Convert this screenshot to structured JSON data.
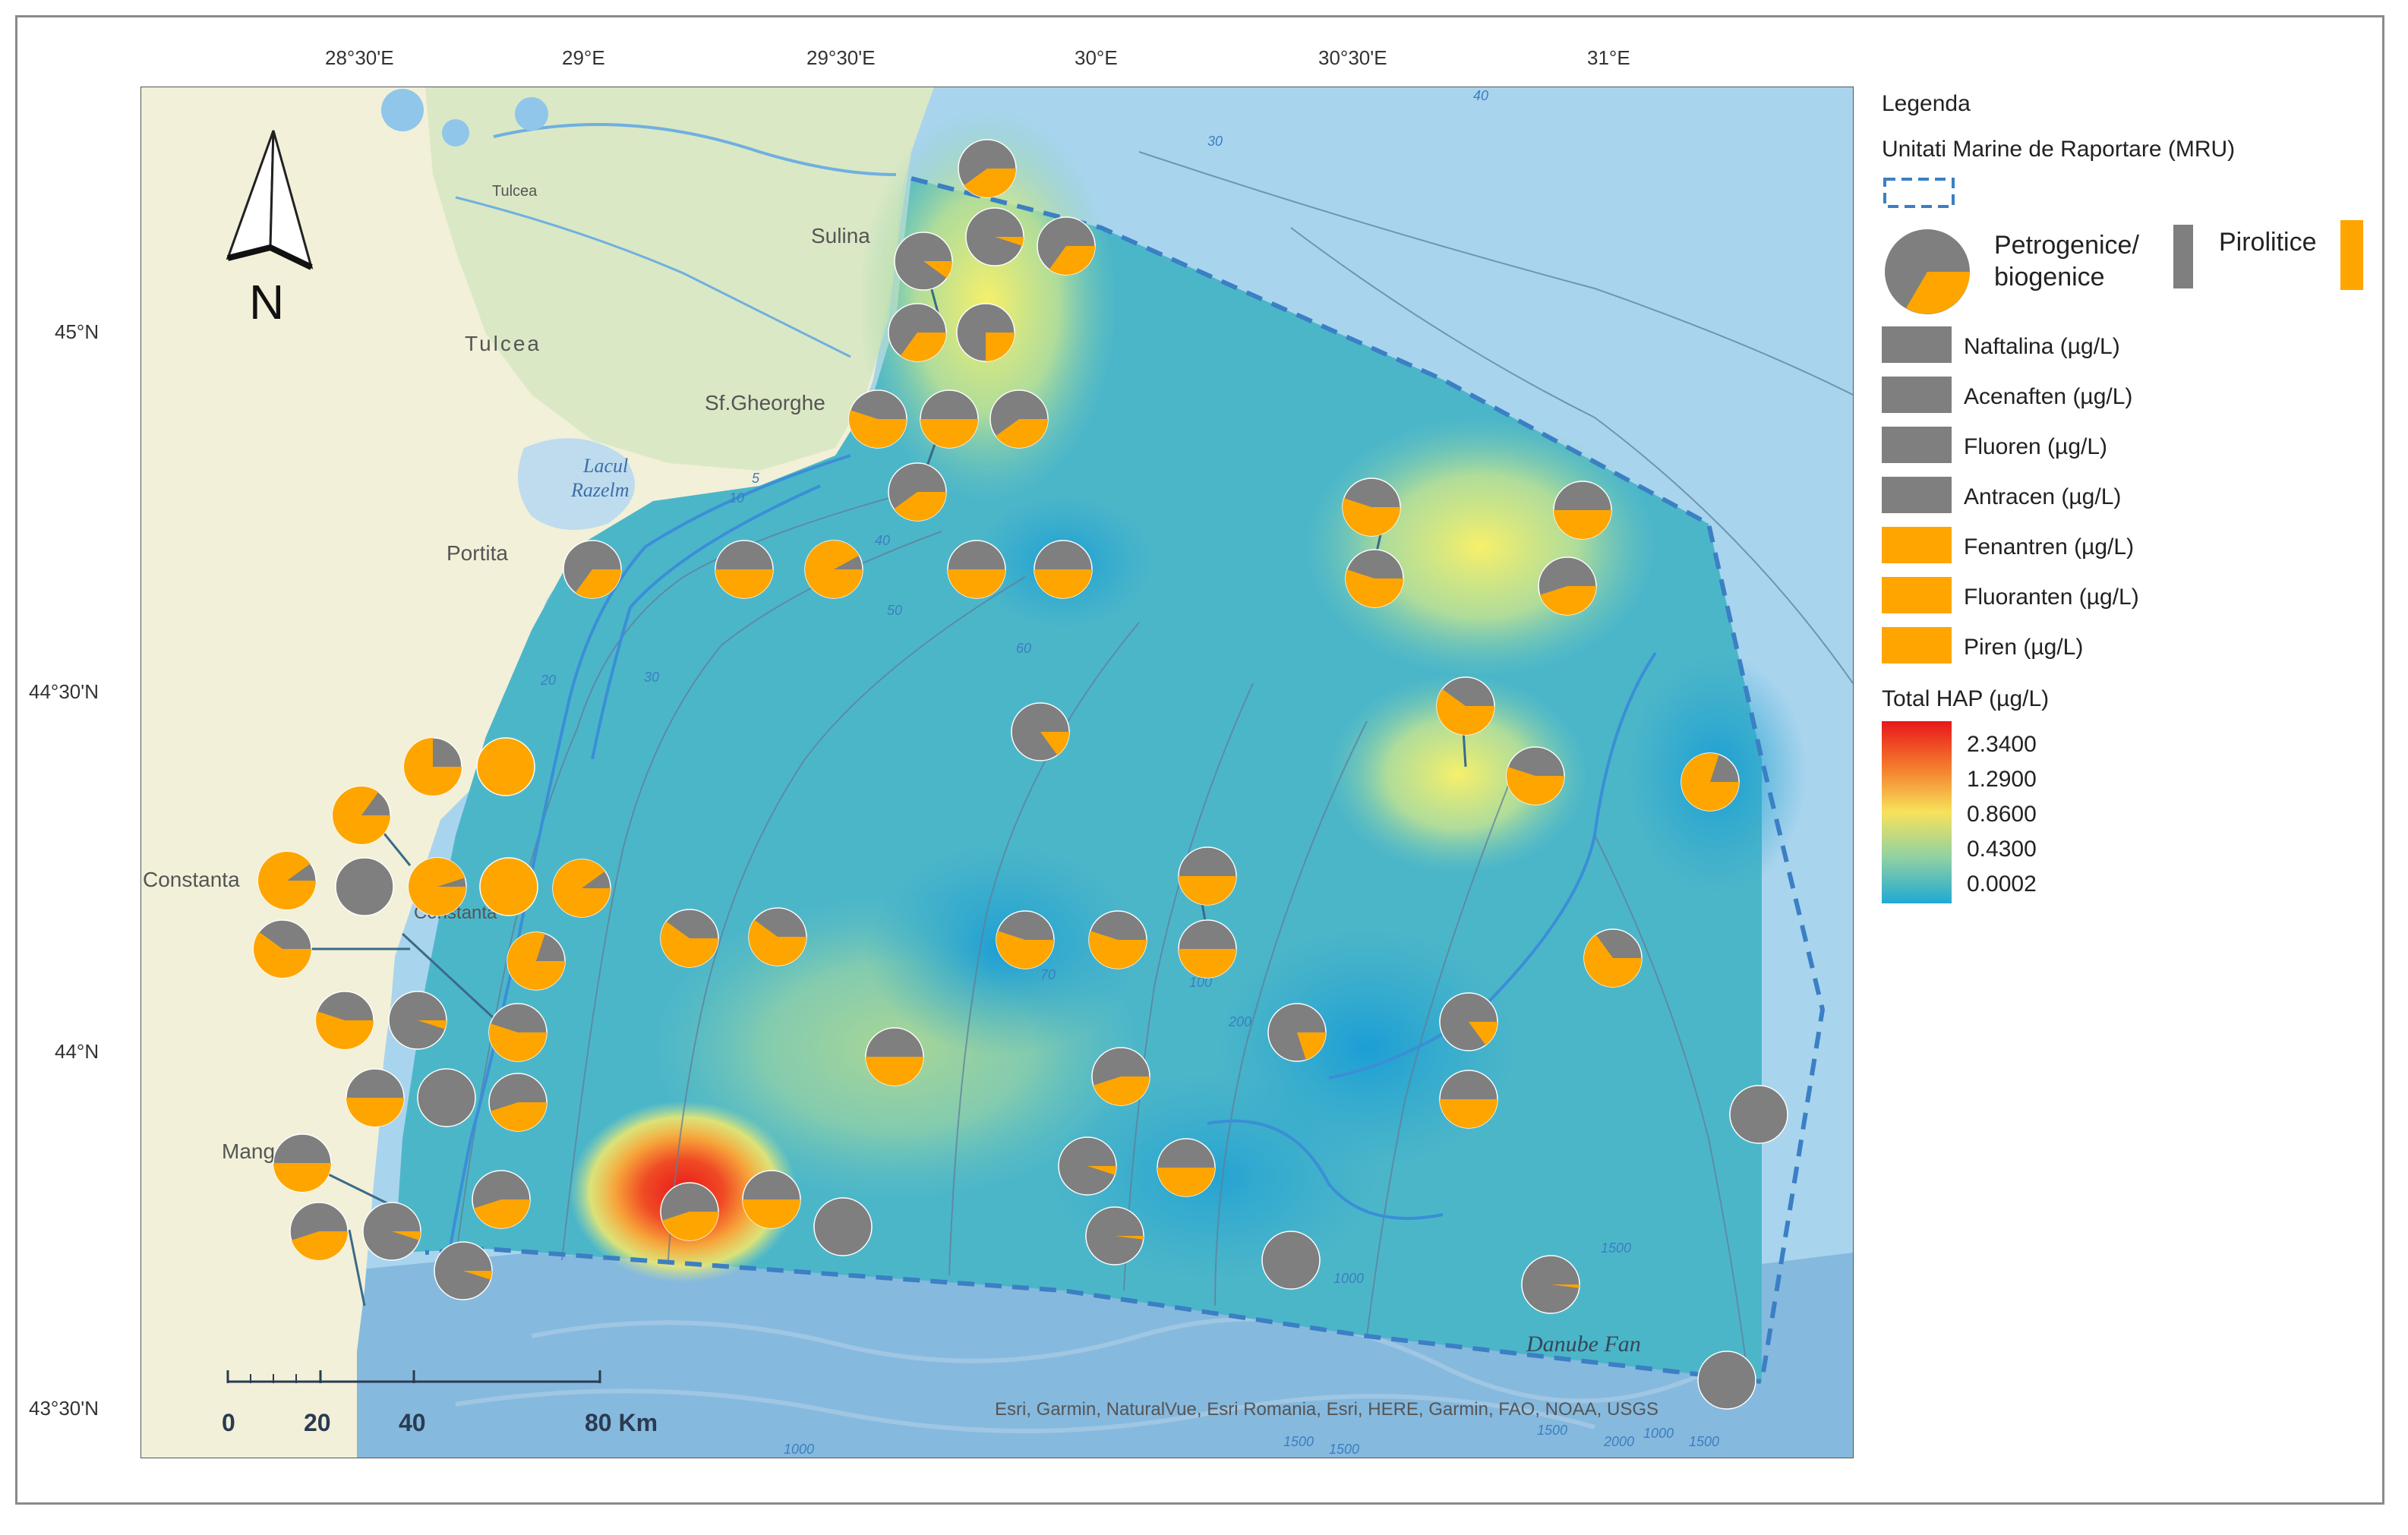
{
  "map": {
    "lon_labels": [
      "28°30'E",
      "29°E",
      "29°30'E",
      "30°E",
      "30°30'E",
      "31°E"
    ],
    "lat_labels": [
      "45°N",
      "44°30'N",
      "44°N",
      "43°30'N"
    ],
    "places": {
      "tulcea_small": "Tulcea",
      "tulcea": "Tulcea",
      "sulina": "Sulina",
      "sf_gheorghe": "Sf.Gheorghe",
      "lacul": "Lacul",
      "razelm": "Razelm",
      "portita": "Portita",
      "constanta_left": "Constanta",
      "constanta": "Constanta",
      "mangalia": "Mangalia",
      "danube_fan": "Danube Fan"
    },
    "depth_labels": [
      "10",
      "5",
      "20",
      "30",
      "40",
      "50",
      "60",
      "70",
      "80",
      "100",
      "200",
      "1000",
      "1500",
      "1500",
      "1000",
      "1500",
      "1500",
      "2000",
      "40",
      "30",
      "1500",
      "1000"
    ],
    "attribution": "Esri, Garmin, NaturalVue, Esri Romania, Esri, HERE, Garmin, FAO, NOAA, USGS",
    "north_label": "N",
    "scale_labels": [
      "0",
      "20",
      "40",
      "80 Km"
    ],
    "colors": {
      "land": "#f2f0d8",
      "sea": "#a9d4ee",
      "deep_sea": "#86b9de",
      "petro": "#7f7f7f",
      "pyro": "#ffa500",
      "mru_border": "#3b7fc4"
    }
  },
  "legend": {
    "title": "Legenda",
    "mru_label": "Unitati Marine de Raportare (MRU)",
    "petro_label_1": "Petrogenice/",
    "petro_label_2": "biogenice",
    "pyro_label": "Pirolitice",
    "compounds": [
      {
        "name": "Naftalina (µg/L)",
        "color": "#7f7f7f"
      },
      {
        "name": "Acenaften (µg/L)",
        "color": "#7f7f7f"
      },
      {
        "name": "Fluoren (µg/L)",
        "color": "#7f7f7f"
      },
      {
        "name": "Antracen (µg/L)",
        "color": "#7f7f7f"
      },
      {
        "name": "Fenantren (µg/L)",
        "color": "#ffa500"
      },
      {
        "name": "Fluoranten (µg/L)",
        "color": "#ffa500"
      },
      {
        "name": "Piren (µg/L)",
        "color": "#ffa500"
      }
    ],
    "total_title": "Total HAP (µg/L)",
    "total_ticks": [
      "2.3400",
      "1.2900",
      "0.8600",
      "0.4300",
      "0.0002"
    ],
    "ramp_colors": [
      "#e8171b",
      "#f47a2c",
      "#f7e25b",
      "#8fd1a3",
      "#1fa9d4"
    ]
  },
  "stations": [
    {
      "pyro": 0.4
    },
    {
      "pyro": 0.1
    },
    {
      "pyro": 0.05
    },
    {
      "pyro": 0.35
    },
    {
      "pyro": 0.35
    },
    {
      "pyro": 0.25
    },
    {
      "pyro": 0.55
    },
    {
      "pyro": 0.5
    },
    {
      "pyro": 0.4
    },
    {
      "pyro": 0.4
    },
    {
      "pyro": 0.55
    },
    {
      "pyro": 0.5
    },
    {
      "pyro": 0.35
    },
    {
      "pyro": 0.5
    },
    {
      "pyro": 0.92
    },
    {
      "pyro": 0.5
    },
    {
      "pyro": 0.5
    },
    {
      "pyro": 0.55
    },
    {
      "pyro": 0.45
    },
    {
      "pyro": 0.15
    },
    {
      "pyro": 0.6
    },
    {
      "pyro": 0.55
    },
    {
      "pyro": 0.8
    },
    {
      "pyro": 0.75
    },
    {
      "pyro": 1.0
    },
    {
      "pyro": 0.85
    },
    {
      "pyro": 0.9
    },
    {
      "pyro": 0.0
    },
    {
      "pyro": 0.95
    },
    {
      "pyro": 1.0
    },
    {
      "pyro": 0.9
    },
    {
      "pyro": 0.6
    },
    {
      "pyro": 0.8
    },
    {
      "pyro": 0.6
    },
    {
      "pyro": 0.6
    },
    {
      "pyro": 0.55
    },
    {
      "pyro": 0.55
    },
    {
      "pyro": 0.5
    },
    {
      "pyro": 0.5
    },
    {
      "pyro": 0.65
    },
    {
      "pyro": 0.55
    },
    {
      "pyro": 0.05
    },
    {
      "pyro": 0.55
    },
    {
      "pyro": 0.5
    },
    {
      "pyro": 0.45
    },
    {
      "pyro": 0.2
    },
    {
      "pyro": 0.15
    },
    {
      "pyro": 0.0
    },
    {
      "pyro": 0.5
    },
    {
      "pyro": 0.0
    },
    {
      "pyro": 0.45
    },
    {
      "pyro": 0.5
    },
    {
      "pyro": 0.05
    },
    {
      "pyro": 0.5
    },
    {
      "pyro": 0.5
    },
    {
      "pyro": 0.45
    },
    {
      "pyro": 0.45
    },
    {
      "pyro": 0.5
    },
    {
      "pyro": 0.0
    },
    {
      "pyro": 0.02
    },
    {
      "pyro": 0.0
    },
    {
      "pyro": 0.02
    },
    {
      "pyro": 0.0
    },
    {
      "pyro": 0.45
    },
    {
      "pyro": 0.05
    },
    {
      "pyro": 0.05
    }
  ]
}
